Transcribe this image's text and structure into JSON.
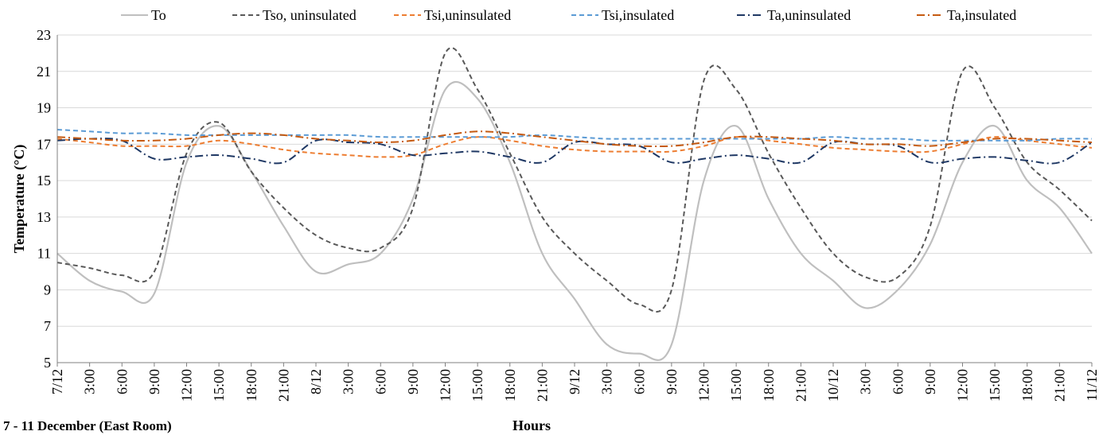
{
  "chart_data": {
    "type": "line",
    "xlabel": "Hours",
    "ylabel": "Temperature (°C)",
    "caption": "7 - 11 December (East Room)",
    "ylim": [
      5,
      23
    ],
    "yticks": [
      5,
      7,
      9,
      11,
      13,
      15,
      17,
      19,
      21,
      23
    ],
    "xlim": [
      0,
      96
    ],
    "grid": true,
    "legend_position": "top",
    "x_tick_labels": [
      "7/12",
      "3:00",
      "6:00",
      "9:00",
      "12:00",
      "15:00",
      "18:00",
      "21:00",
      "8/12",
      "3:00",
      "6:00",
      "9:00",
      "12:00",
      "15:00",
      "18:00",
      "21:00",
      "9/12",
      "3:00",
      "6:00",
      "9:00",
      "12:00",
      "15:00",
      "18:00",
      "21:00",
      "10/12",
      "3:00",
      "6:00",
      "9:00",
      "12:00",
      "15:00",
      "18:00",
      "21:00",
      "11/12"
    ],
    "x": [
      0,
      3,
      6,
      9,
      12,
      15,
      18,
      21,
      24,
      27,
      30,
      33,
      36,
      39,
      42,
      45,
      48,
      51,
      54,
      57,
      60,
      63,
      66,
      69,
      72,
      75,
      78,
      81,
      84,
      87,
      90,
      93,
      96
    ],
    "series": [
      {
        "name": "To",
        "color": "#bfbfbf",
        "dash": "solid",
        "values": [
          11.0,
          9.5,
          8.9,
          8.8,
          16.0,
          18.0,
          15.5,
          12.5,
          10.0,
          10.4,
          11.0,
          14.0,
          20.0,
          19.5,
          16.0,
          11.0,
          8.5,
          6.0,
          5.5,
          6.0,
          15.0,
          18.0,
          14.0,
          11.0,
          9.5,
          8.0,
          9.0,
          11.5,
          16.0,
          18.0,
          15.0,
          13.5,
          11.0
        ]
      },
      {
        "name": "Tso, uninsulated",
        "color": "#595959",
        "dash": "dashed",
        "values": [
          10.5,
          10.2,
          9.8,
          10.0,
          16.5,
          18.2,
          15.5,
          13.5,
          12.0,
          11.3,
          11.3,
          13.5,
          22.0,
          20.0,
          16.5,
          13.0,
          11.0,
          9.5,
          8.2,
          9.0,
          20.5,
          20.0,
          16.5,
          13.5,
          11.0,
          9.7,
          9.7,
          12.5,
          21.0,
          19.0,
          16.0,
          14.5,
          12.8
        ]
      },
      {
        "name": "Tsi,uninsulated",
        "color": "#ed7d31",
        "dash": "dashed",
        "values": [
          17.3,
          17.1,
          16.9,
          16.9,
          16.9,
          17.2,
          17.0,
          16.7,
          16.5,
          16.4,
          16.3,
          16.4,
          17.0,
          17.4,
          17.2,
          16.9,
          16.7,
          16.6,
          16.6,
          16.6,
          16.9,
          17.4,
          17.2,
          17.0,
          16.8,
          16.7,
          16.6,
          16.6,
          17.0,
          17.4,
          17.2,
          17.0,
          16.8
        ]
      },
      {
        "name": "Tsi,insulated",
        "color": "#5b9bd5",
        "dash": "dashed",
        "values": [
          17.8,
          17.7,
          17.6,
          17.6,
          17.5,
          17.5,
          17.5,
          17.5,
          17.5,
          17.5,
          17.4,
          17.4,
          17.4,
          17.4,
          17.4,
          17.5,
          17.4,
          17.3,
          17.3,
          17.3,
          17.3,
          17.3,
          17.3,
          17.3,
          17.4,
          17.3,
          17.3,
          17.2,
          17.2,
          17.2,
          17.2,
          17.3,
          17.3
        ]
      },
      {
        "name": "Ta,uninsulated",
        "color": "#1f3864",
        "dash": "dashdot",
        "values": [
          17.2,
          17.3,
          17.2,
          16.2,
          16.3,
          16.4,
          16.2,
          16.0,
          17.2,
          17.1,
          17.0,
          16.4,
          16.5,
          16.6,
          16.3,
          16.0,
          17.1,
          17.0,
          16.9,
          16.0,
          16.2,
          16.4,
          16.2,
          16.0,
          17.1,
          17.0,
          16.9,
          16.0,
          16.2,
          16.3,
          16.1,
          16.0,
          17.1
        ]
      },
      {
        "name": "Ta,insulated",
        "color": "#c55a11",
        "dash": "dashdot",
        "values": [
          17.4,
          17.3,
          17.2,
          17.2,
          17.3,
          17.5,
          17.6,
          17.5,
          17.3,
          17.2,
          17.1,
          17.2,
          17.5,
          17.7,
          17.6,
          17.4,
          17.2,
          17.0,
          16.9,
          16.9,
          17.1,
          17.4,
          17.4,
          17.3,
          17.2,
          17.0,
          17.0,
          16.9,
          17.1,
          17.3,
          17.3,
          17.2,
          17.1
        ]
      }
    ]
  }
}
